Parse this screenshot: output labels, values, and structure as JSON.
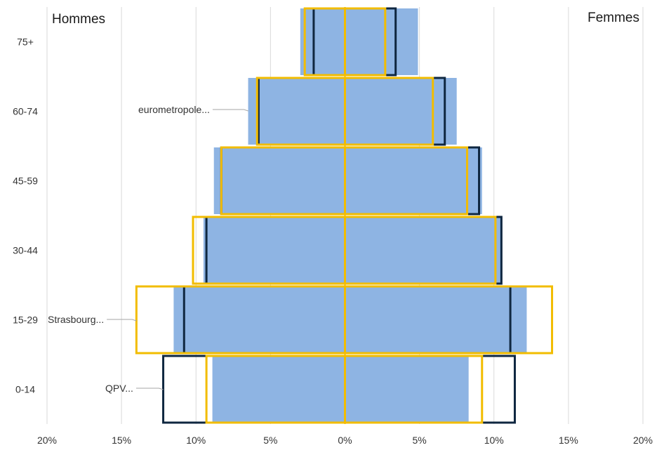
{
  "panel_labels": {
    "left": "Hommes",
    "right": "Femmes"
  },
  "chart_data": {
    "type": "bar",
    "subtype": "population-pyramid",
    "categories": [
      "0-14",
      "15-29",
      "30-44",
      "45-59",
      "60-74",
      "75+"
    ],
    "x_ticks": [
      -20,
      -15,
      -10,
      -5,
      0,
      5,
      10,
      15,
      20
    ],
    "x_tick_labels": [
      "20%",
      "15%",
      "10%",
      "5%",
      "0%",
      "5%",
      "10%",
      "15%",
      "20%"
    ],
    "xlim": [
      -20,
      20
    ],
    "grid": true,
    "series": [
      {
        "name": "eurometropole...",
        "style": "filled",
        "color": "#8eb4e3",
        "men": [
          8.9,
          11.5,
          9.5,
          8.8,
          6.5,
          3.0
        ],
        "women": [
          8.3,
          12.2,
          10.5,
          9.2,
          7.5,
          4.9
        ]
      },
      {
        "name": "QPV...",
        "style": "outline",
        "color": "#0f2740",
        "men": [
          12.2,
          10.8,
          9.3,
          8.3,
          5.8,
          2.1
        ],
        "women": [
          11.4,
          11.1,
          10.5,
          9.0,
          6.7,
          3.4
        ]
      },
      {
        "name": "Strasbourg...",
        "style": "outline",
        "color": "#f2bc00",
        "men": [
          9.3,
          14.0,
          10.2,
          8.3,
          5.9,
          2.7
        ],
        "women": [
          9.2,
          13.9,
          10.1,
          8.2,
          5.9,
          2.7
        ]
      }
    ]
  }
}
